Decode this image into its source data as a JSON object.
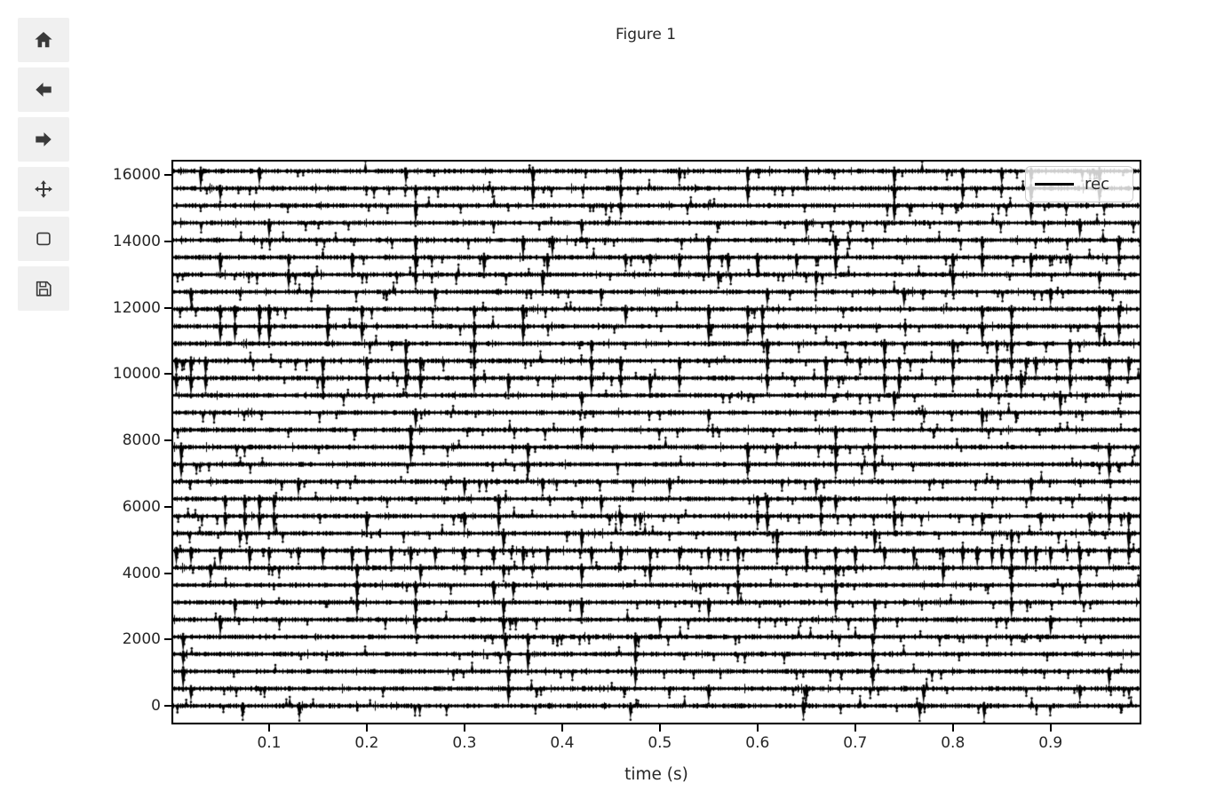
{
  "figure": {
    "title": "Figure 1",
    "background": "#ffffff"
  },
  "toolbar": {
    "background": "#f0f0f0",
    "icon_color": "#3a3a3a",
    "buttons": [
      {
        "name": "home"
      },
      {
        "name": "back"
      },
      {
        "name": "forward"
      },
      {
        "name": "pan"
      },
      {
        "name": "zoom-to-rect"
      },
      {
        "name": "save"
      }
    ]
  },
  "chart_data": {
    "type": "line",
    "title": "Figure 1",
    "xlabel": "time (s)",
    "ylabel": "",
    "xlim": [
      0.0,
      0.993
    ],
    "ylim": [
      -560,
      16460
    ],
    "xticks": [
      0.1,
      0.2,
      0.3,
      0.4,
      0.5,
      0.6,
      0.7,
      0.8,
      0.9
    ],
    "xtick_labels": [
      "0.1",
      "0.2",
      "0.3",
      "0.4",
      "0.5",
      "0.6",
      "0.7",
      "0.8",
      "0.9"
    ],
    "yticks": [
      0,
      2000,
      4000,
      6000,
      8000,
      10000,
      12000,
      14000,
      16000
    ],
    "ytick_labels": [
      "0",
      "2000",
      "4000",
      "6000",
      "8000",
      "10000",
      "12000",
      "14000",
      "16000"
    ],
    "grid": false,
    "legend": {
      "label": "rec",
      "line_color": "#000000",
      "position": "upper right"
    },
    "trace_color": "#000000",
    "n_channels": 32,
    "channel_offset_step": 520,
    "noise_amplitude": 60,
    "small_spike_depth": [
      120,
      300
    ],
    "large_spike_depth": [
      380,
      620
    ],
    "seed": 1234,
    "channels": [
      {
        "offset": 0,
        "spike_times": [
          0.073,
          0.131,
          0.47,
          0.647,
          0.766,
          0.832
        ]
      },
      {
        "offset": 520,
        "spike_times": [
          0.02,
          0.345,
          0.55,
          0.65,
          0.77,
          0.93
        ]
      },
      {
        "offset": 1040,
        "spike_times": [
          0.012,
          0.345,
          0.475,
          0.718,
          0.96
        ]
      },
      {
        "offset": 1560,
        "spike_times": [
          0.012,
          0.345,
          0.365,
          0.475,
          0.718
        ]
      },
      {
        "offset": 2080,
        "spike_times": [
          0.012,
          0.342,
          0.365,
          0.475,
          0.718
        ]
      },
      {
        "offset": 2600,
        "spike_times": [
          0.05,
          0.25,
          0.34,
          0.5,
          0.72,
          0.9
        ]
      },
      {
        "offset": 3120,
        "spike_times": [
          0.065,
          0.19,
          0.25,
          0.34,
          0.42,
          0.55,
          0.68,
          0.72,
          0.86
        ]
      },
      {
        "offset": 3640,
        "spike_times": [
          0.19,
          0.25,
          0.33,
          0.35,
          0.58,
          0.68,
          0.86,
          0.93
        ]
      },
      {
        "offset": 4160,
        "spike_times": [
          0.04,
          0.19,
          0.255,
          0.34,
          0.42,
          0.49,
          0.58,
          0.68,
          0.79,
          0.86,
          0.93
        ]
      },
      {
        "offset": 4680,
        "spike_times": [
          0.005,
          0.02,
          0.05,
          0.08,
          0.1,
          0.13,
          0.155,
          0.185,
          0.2,
          0.225,
          0.245,
          0.27,
          0.3,
          0.33,
          0.36,
          0.385,
          0.43,
          0.46,
          0.49,
          0.52,
          0.55,
          0.58,
          0.62,
          0.65,
          0.68,
          0.7,
          0.73,
          0.76,
          0.79,
          0.81,
          0.825,
          0.84,
          0.85,
          0.86,
          0.875,
          0.885,
          0.9,
          0.93,
          0.96,
          0.98
        ]
      },
      {
        "offset": 5200,
        "spike_times": [
          0.07,
          0.34,
          0.42,
          0.62,
          0.72,
          0.86,
          0.98
        ]
      },
      {
        "offset": 5720,
        "spike_times": [
          0.055,
          0.075,
          0.09,
          0.105,
          0.2,
          0.3,
          0.335,
          0.46,
          0.48,
          0.6,
          0.61,
          0.665,
          0.74,
          0.83,
          0.89,
          0.94,
          0.96,
          0.98
        ]
      },
      {
        "offset": 6240,
        "spike_times": [
          0.055,
          0.075,
          0.09,
          0.105,
          0.335,
          0.44,
          0.6,
          0.61,
          0.665,
          0.68,
          0.74,
          0.96
        ]
      },
      {
        "offset": 6760,
        "spike_times": [
          0.13,
          0.3,
          0.38,
          0.51,
          0.66,
          0.88
        ]
      },
      {
        "offset": 7280,
        "spike_times": [
          0.01,
          0.365,
          0.59,
          0.68,
          0.72,
          0.96
        ]
      },
      {
        "offset": 7800,
        "spike_times": [
          0.01,
          0.245,
          0.365,
          0.59,
          0.62,
          0.68,
          0.72,
          0.96
        ]
      },
      {
        "offset": 8320,
        "spike_times": [
          0.245,
          0.42,
          0.68,
          0.72
        ]
      },
      {
        "offset": 8840,
        "spike_times": [
          0.25,
          0.55,
          0.83
        ]
      },
      {
        "offset": 9360,
        "spike_times": [
          0.42,
          0.74,
          0.91
        ]
      },
      {
        "offset": 9880,
        "spike_times": [
          0.005,
          0.02,
          0.035,
          0.155,
          0.2,
          0.24,
          0.255,
          0.31,
          0.345,
          0.43,
          0.46,
          0.49,
          0.52,
          0.61,
          0.67,
          0.73,
          0.745,
          0.8,
          0.84,
          0.855,
          0.87,
          0.92,
          0.96
        ]
      },
      {
        "offset": 10400,
        "spike_times": [
          0.005,
          0.02,
          0.035,
          0.155,
          0.2,
          0.24,
          0.255,
          0.31,
          0.43,
          0.46,
          0.52,
          0.61,
          0.67,
          0.705,
          0.73,
          0.745,
          0.8,
          0.845,
          0.86,
          0.875,
          0.885,
          0.92,
          0.96,
          0.98
        ]
      },
      {
        "offset": 10920,
        "spike_times": [
          0.24,
          0.31,
          0.43,
          0.61,
          0.73,
          0.8,
          0.845,
          0.86,
          0.92
        ]
      },
      {
        "offset": 11440,
        "spike_times": [
          0.05,
          0.065,
          0.09,
          0.1,
          0.16,
          0.195,
          0.31,
          0.36,
          0.55,
          0.59,
          0.605,
          0.83,
          0.86,
          0.95,
          0.97
        ]
      },
      {
        "offset": 11960,
        "spike_times": [
          0.05,
          0.065,
          0.09,
          0.1,
          0.16,
          0.195,
          0.31,
          0.36,
          0.465,
          0.55,
          0.59,
          0.605,
          0.83,
          0.86,
          0.95,
          0.97
        ]
      },
      {
        "offset": 12480,
        "spike_times": [
          0.02,
          0.27,
          0.44,
          0.61,
          0.75,
          0.9
        ]
      },
      {
        "offset": 13000,
        "spike_times": [
          0.12,
          0.25,
          0.38,
          0.56,
          0.66,
          0.8,
          0.95
        ]
      },
      {
        "offset": 13520,
        "spike_times": [
          0.05,
          0.12,
          0.185,
          0.25,
          0.32,
          0.385,
          0.465,
          0.49,
          0.52,
          0.55,
          0.57,
          0.6,
          0.64,
          0.68,
          0.8,
          0.83,
          0.88,
          0.92,
          0.97
        ]
      },
      {
        "offset": 14040,
        "spike_times": [
          0.25,
          0.36,
          0.39,
          0.55,
          0.68,
          0.83,
          0.97
        ]
      },
      {
        "offset": 14560,
        "spike_times": [
          0.1,
          0.42,
          0.65,
          0.93
        ]
      },
      {
        "offset": 15080,
        "spike_times": [
          0.25,
          0.46,
          0.74,
          0.88
        ]
      },
      {
        "offset": 15600,
        "spike_times": [
          0.05,
          0.25,
          0.37,
          0.46,
          0.59,
          0.74,
          0.81,
          0.88,
          0.95
        ]
      },
      {
        "offset": 16120,
        "spike_times": [
          0.03,
          0.09,
          0.24,
          0.37,
          0.46,
          0.52,
          0.59,
          0.65,
          0.74,
          0.81,
          0.85,
          0.88,
          0.95
        ]
      }
    ]
  }
}
